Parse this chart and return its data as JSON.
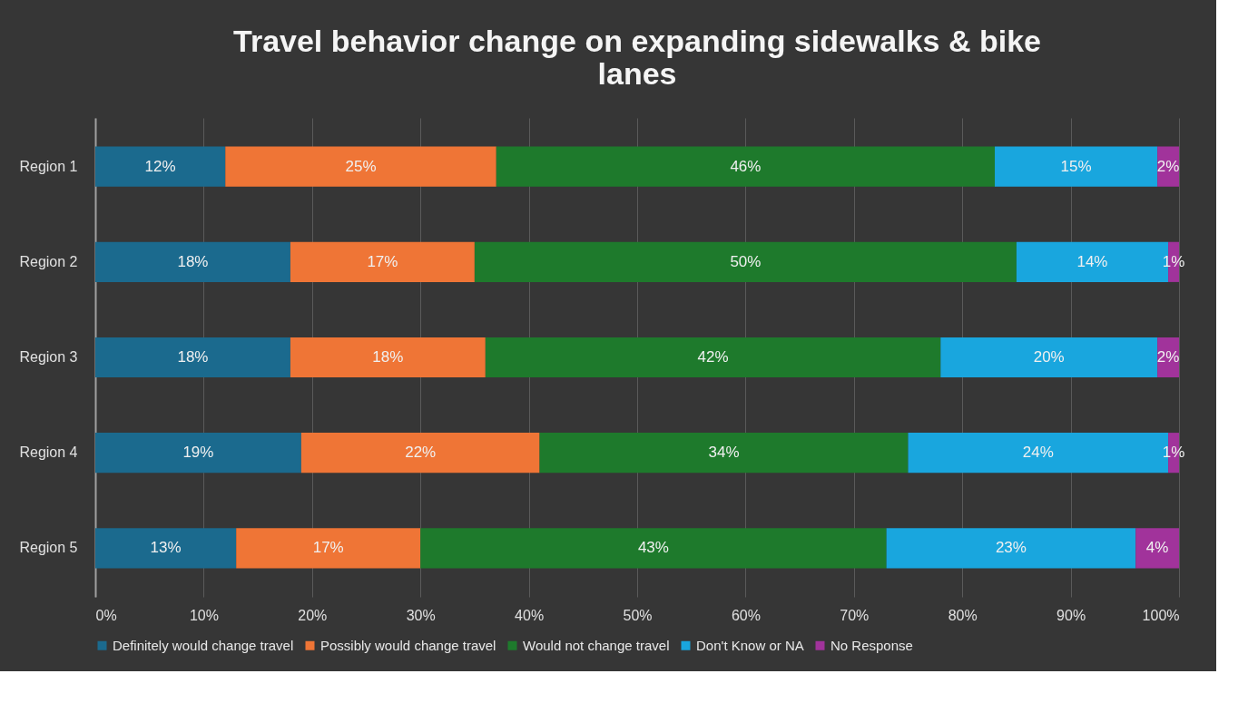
{
  "chart_data": {
    "type": "bar",
    "orientation": "horizontal",
    "stacked": true,
    "title": "Travel behavior change on expanding sidewalks & bike lanes",
    "categories": [
      "Region 1",
      "Region 2",
      "Region 3",
      "Region 4",
      "Region 5"
    ],
    "series": [
      {
        "name": "Definitely would change travel",
        "color": "#1b6a8e",
        "values": [
          12,
          18,
          18,
          19,
          13
        ],
        "value_labels": [
          "12%",
          "18%",
          "18%",
          "19%",
          "13%"
        ]
      },
      {
        "name": "Possibly would change travel",
        "color": "#ef7536",
        "values": [
          25,
          17,
          18,
          22,
          17
        ],
        "value_labels": [
          "25%",
          "17%",
          "18%",
          "22%",
          "17%"
        ]
      },
      {
        "name": "Would not change travel",
        "color": "#1e7a2c",
        "values": [
          46,
          50,
          42,
          34,
          43
        ],
        "value_labels": [
          "46%",
          "50%",
          "42%",
          "34%",
          "43%"
        ]
      },
      {
        "name": "Don't Know or NA",
        "color": "#19a6de",
        "values": [
          15,
          14,
          20,
          24,
          23
        ],
        "value_labels": [
          "15%",
          "14%",
          "20%",
          "24%",
          "23%"
        ]
      },
      {
        "name": "No Response",
        "color": "#a1339b",
        "values": [
          2,
          1,
          2,
          1,
          4
        ],
        "value_labels": [
          "2%",
          "1%",
          "2%",
          "1%",
          "4%"
        ]
      }
    ],
    "xlim": [
      0,
      100
    ],
    "xticks": [
      {
        "value": 0,
        "label": "0%"
      },
      {
        "value": 10,
        "label": "10%"
      },
      {
        "value": 20,
        "label": "20%"
      },
      {
        "value": 30,
        "label": "30%"
      },
      {
        "value": 40,
        "label": "40%"
      },
      {
        "value": 50,
        "label": "50%"
      },
      {
        "value": 60,
        "label": "60%"
      },
      {
        "value": 70,
        "label": "70%"
      },
      {
        "value": 80,
        "label": "80%"
      },
      {
        "value": 90,
        "label": "90%"
      },
      {
        "value": 100,
        "label": "100%"
      }
    ],
    "grid": "x",
    "legend": "bottom"
  }
}
